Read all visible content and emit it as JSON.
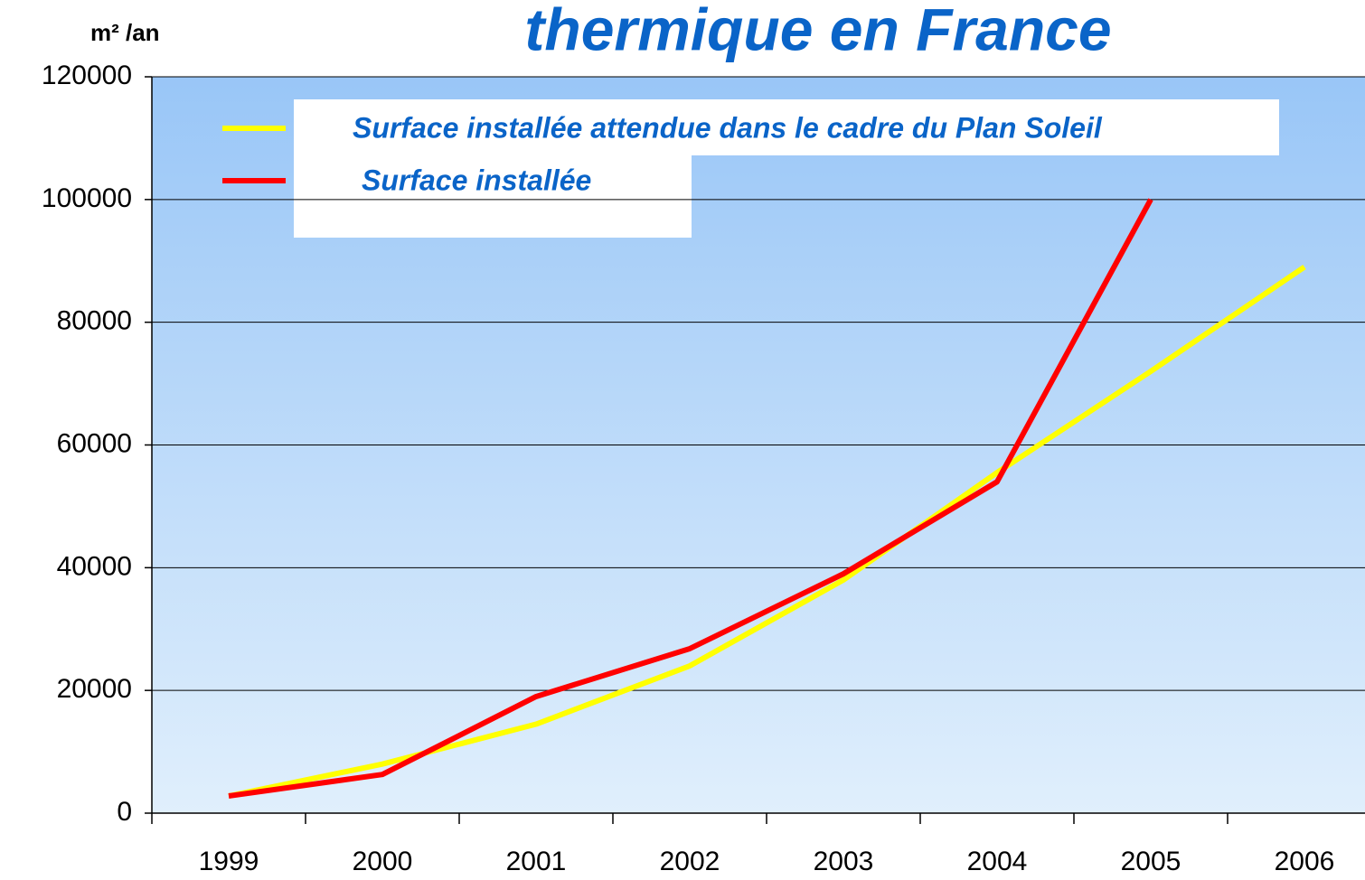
{
  "chart_data": {
    "type": "line",
    "title": "thermique en France",
    "y_label": "m² /an",
    "categories": [
      "1999",
      "2000",
      "2001",
      "2002",
      "2003",
      "2004",
      "2005",
      "2006"
    ],
    "series": [
      {
        "name": "Surface installée attendue dans le cadre du Plan Soleil",
        "color": "#ffff00",
        "values": [
          2800,
          8000,
          14500,
          24000,
          38000,
          55500,
          72000,
          89000
        ]
      },
      {
        "name": "Surface installée",
        "color": "#ff0000",
        "values": [
          2800,
          6300,
          19000,
          26800,
          39000,
          54000,
          100000,
          null
        ]
      }
    ],
    "ylim": [
      0,
      120000
    ],
    "yticks": [
      0,
      20000,
      40000,
      60000,
      80000,
      100000,
      120000
    ],
    "grid": true
  }
}
